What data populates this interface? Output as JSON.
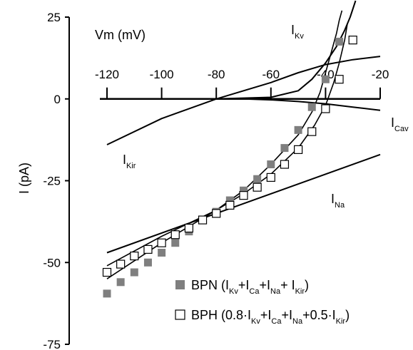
{
  "chart_data": {
    "type": "scatter",
    "ylabel": "I (pA)",
    "xlabel": "Vm (mV)",
    "xlim": [
      -120,
      -20
    ],
    "ylim": [
      -75,
      25
    ],
    "x_ticks": [
      -120,
      -100,
      -80,
      -60,
      -40,
      -20
    ],
    "y_ticks": [
      25,
      0,
      -25,
      -50,
      -75
    ],
    "curve_labels": [
      {
        "main": "I",
        "sub": "Kv",
        "curve": "Kv"
      },
      {
        "main": "I",
        "sub": "Cav",
        "curve": "Cav"
      },
      {
        "main": "I",
        "sub": "Kir",
        "curve": "Kir"
      },
      {
        "main": "I",
        "sub": "Na",
        "curve": "Na"
      }
    ],
    "model_curves": [
      {
        "id": "Kv",
        "x": [
          -120,
          -80,
          -60,
          -50,
          -45,
          -40,
          -36,
          -33,
          -31,
          -29
        ],
        "y": [
          0,
          0,
          0.5,
          2.5,
          6,
          11,
          16,
          21,
          25,
          30
        ]
      },
      {
        "id": "Cav",
        "x": [
          -120,
          -70,
          -60,
          -50,
          -40,
          -30,
          -20
        ],
        "y": [
          0,
          0,
          -0.3,
          -0.8,
          -1.5,
          -2.5,
          -3.5
        ]
      },
      {
        "id": "Kir",
        "x": [
          -120,
          -100,
          -80,
          -60,
          -50,
          -40,
          -30,
          -20
        ],
        "y": [
          -14,
          -6,
          0,
          5,
          8,
          10.5,
          12,
          13
        ]
      },
      {
        "id": "Na",
        "x": [
          -120,
          -20
        ],
        "y": [
          -47,
          -17
        ]
      },
      {
        "id": "BPN-trace",
        "x": [
          -120,
          -100,
          -80,
          -70,
          -60,
          -50,
          -45,
          -42,
          -40,
          -38,
          -36,
          -35,
          -34
        ],
        "y": [
          -55,
          -44,
          -34,
          -28,
          -20,
          -11,
          -4,
          2,
          8,
          14,
          20,
          24,
          27
        ]
      },
      {
        "id": "BPH-trace",
        "x": [
          -120,
          -100,
          -80,
          -70,
          -60,
          -50,
          -44,
          -40,
          -37,
          -35,
          -33,
          -32
        ],
        "y": [
          -51,
          -42,
          -34,
          -29,
          -23,
          -15,
          -8,
          -2,
          5,
          11,
          18,
          23
        ]
      }
    ],
    "series": [
      {
        "name_parts": [
          "BPN (",
          "I",
          "Kv",
          "+",
          "I",
          "Ca",
          "+",
          "I",
          "Na",
          "+ ",
          "I",
          "Kir",
          ")"
        ],
        "marker": "filled-square",
        "color": "#7f7f7f",
        "x": [
          -120,
          -115,
          -110,
          -105,
          -100,
          -95,
          -90,
          -85,
          -80,
          -75,
          -70,
          -65,
          -60,
          -55,
          -50,
          -45,
          -40,
          -35
        ],
        "y": [
          -59.5,
          -56,
          -53,
          -50,
          -47,
          -44,
          -40.5,
          -37,
          -34.5,
          -31,
          -28,
          -24.5,
          -20,
          -15,
          -9.5,
          -2.5,
          6,
          17.5
        ]
      },
      {
        "name_parts": [
          "BPH (0.8·",
          "I",
          "Kv",
          "+",
          "I",
          "Ca",
          "+",
          "I",
          "Na",
          "+0.5·",
          "I",
          "Kir",
          ")"
        ],
        "marker": "open-square",
        "color": "#000000",
        "x": [
          -120,
          -115,
          -110,
          -105,
          -100,
          -95,
          -90,
          -85,
          -80,
          -75,
          -70,
          -65,
          -60,
          -55,
          -50,
          -45,
          -40,
          -35,
          -30
        ],
        "y": [
          -53,
          -50.5,
          -48,
          -46,
          -44,
          -41.5,
          -39.5,
          -37,
          -35,
          -32.5,
          -29.5,
          -27,
          -24,
          -20,
          -15.5,
          -10,
          -3,
          6,
          18
        ]
      }
    ]
  }
}
